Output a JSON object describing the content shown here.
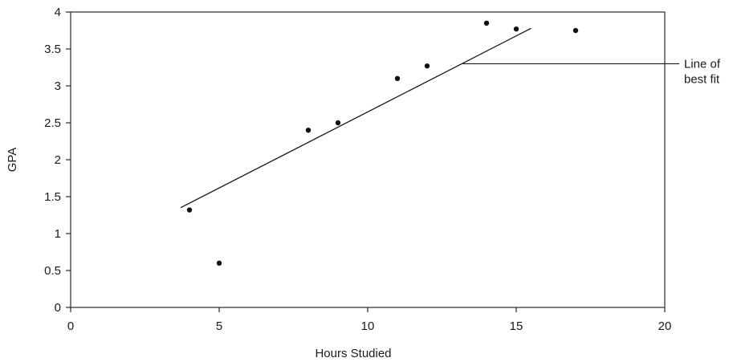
{
  "chart_data": {
    "type": "scatter",
    "title": "",
    "xlabel": "Hours Studied",
    "ylabel": "GPA",
    "xlim": [
      0,
      20
    ],
    "ylim": [
      0,
      4
    ],
    "xticks": [
      0,
      5,
      10,
      15,
      20
    ],
    "yticks": [
      0,
      0.5,
      1,
      1.5,
      2,
      2.5,
      3,
      3.5,
      4
    ],
    "xtick_labels": [
      "0",
      "5",
      "10",
      "15",
      "20"
    ],
    "ytick_labels": [
      "0",
      "0.5",
      "1",
      "1.5",
      "2",
      "2.5",
      "3",
      "3.5",
      "4"
    ],
    "grid": false,
    "legend": "none",
    "points": [
      {
        "x": 4,
        "y": 1.32
      },
      {
        "x": 5,
        "y": 0.6
      },
      {
        "x": 8,
        "y": 2.4
      },
      {
        "x": 9,
        "y": 2.5
      },
      {
        "x": 11,
        "y": 3.1
      },
      {
        "x": 12,
        "y": 3.27
      },
      {
        "x": 14,
        "y": 3.85
      },
      {
        "x": 15,
        "y": 3.77
      },
      {
        "x": 17,
        "y": 3.75
      }
    ],
    "fit_line": {
      "start": {
        "x": 3.7,
        "y": 1.35
      },
      "end": {
        "x": 15.5,
        "y": 3.78
      }
    },
    "annotation": {
      "lines": [
        "Line of",
        "best fit"
      ],
      "anchor": {
        "x": 13.2,
        "y": 3.3
      }
    },
    "colors": {
      "points": "#111111",
      "lines": "#1a1a1a",
      "frame": "#2a2a2a"
    }
  }
}
